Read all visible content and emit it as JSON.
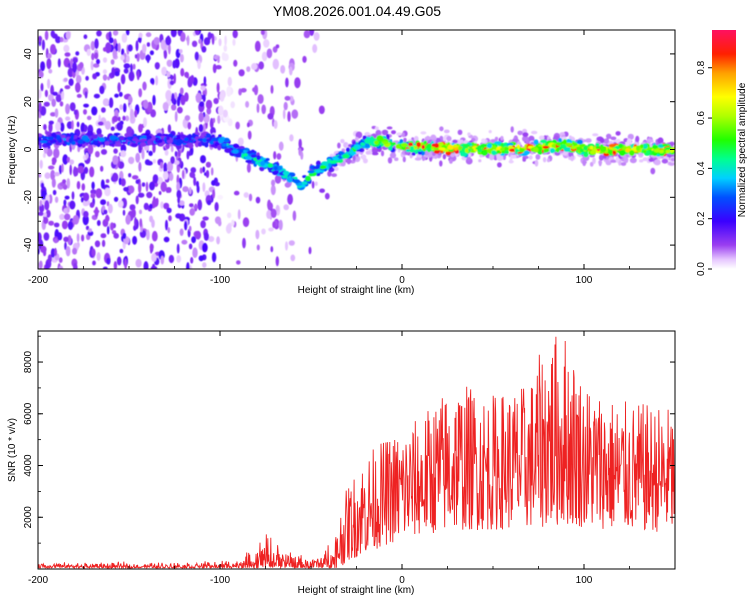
{
  "title": "YM08.2026.001.04.49.G05",
  "chart_data": [
    {
      "type": "heatmap",
      "title": "YM08.2026.001.04.49.G05",
      "xlabel": "Height of straight line (km)",
      "ylabel": "Frequency (Hz)",
      "xlim": [
        -200,
        150
      ],
      "ylim": [
        -50,
        50
      ],
      "x_ticks": [
        "-200",
        "-100",
        "0",
        "100"
      ],
      "y_ticks": [
        "-40",
        "-20",
        "0",
        "20",
        "40"
      ],
      "colorbar": {
        "label": "Normalized spectral amplitude",
        "range": [
          0.0,
          0.95
        ],
        "ticks": [
          "0.0",
          "0.2",
          "0.4",
          "0.6",
          "0.8"
        ]
      },
      "ridge": {
        "x": [
          -200,
          -150,
          -110,
          -100,
          -90,
          -80,
          -70,
          -60,
          -55,
          -50,
          -45,
          -40,
          -30,
          -20,
          -15,
          0,
          20,
          50,
          80,
          90,
          100,
          150
        ],
        "frequency": [
          4,
          4,
          4,
          3,
          -1,
          -4,
          -8,
          -12,
          -16,
          -10,
          -8,
          -6,
          -2,
          3,
          4,
          1,
          1,
          0,
          1,
          2,
          0,
          0
        ]
      }
    },
    {
      "type": "line",
      "xlabel": "Height of straight line (km)",
      "ylabel": "SNR (10 * v/v)",
      "xlim": [
        -200,
        150
      ],
      "ylim": [
        0,
        9200
      ],
      "x_ticks": [
        "-200",
        "-100",
        "0",
        "100"
      ],
      "y_ticks": [
        "2000",
        "4000",
        "6000",
        "8000"
      ],
      "color": "#ee2222",
      "envelope": {
        "x": [
          -200,
          -140,
          -100,
          -90,
          -80,
          -75,
          -70,
          -65,
          -60,
          -50,
          -40,
          -35,
          -30,
          -20,
          -10,
          0,
          10,
          20,
          30,
          50,
          70,
          80,
          90,
          100,
          120,
          150
        ],
        "floor": [
          0,
          0,
          0,
          0,
          0,
          0,
          0,
          0,
          0,
          0,
          0,
          0,
          300,
          600,
          900,
          1100,
          1300,
          1400,
          1500,
          1500,
          1600,
          1600,
          1700,
          1600,
          1500,
          1400
        ],
        "peak": [
          250,
          250,
          300,
          400,
          900,
          1700,
          1300,
          900,
          700,
          400,
          1100,
          2000,
          3200,
          4500,
          5000,
          5500,
          5900,
          6700,
          7300,
          6800,
          7200,
          9200,
          9200,
          7300,
          6500,
          6300
        ]
      }
    }
  ]
}
